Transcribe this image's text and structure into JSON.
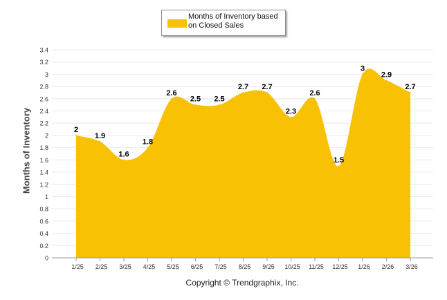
{
  "legend": {
    "label_line1": "Months of Inventory based",
    "label_line2": "on Closed Sales"
  },
  "footer": {
    "copyright": "Copyright © Trendgraphix, Inc."
  },
  "colors": {
    "fill": "#F8C103",
    "grid": "#e9e9e9",
    "axis": "#999999",
    "text": "#333333"
  },
  "chart_data": {
    "type": "area",
    "title": "",
    "xlabel": "",
    "ylabel": "Months of Inventory",
    "categories": [
      "1/25",
      "2/25",
      "3/25",
      "4/25",
      "5/25",
      "6/25",
      "7/25",
      "8/25",
      "9/25",
      "10/25",
      "11/25",
      "12/25",
      "1/26",
      "2/26",
      "3/26"
    ],
    "series": [
      {
        "name": "Months of Inventory based on Closed Sales",
        "values": [
          2,
          1.9,
          1.6,
          1.8,
          2.6,
          2.5,
          2.5,
          2.7,
          2.7,
          2.3,
          2.6,
          1.5,
          3,
          2.9,
          2.7
        ],
        "labels": [
          "2",
          "1.9",
          "1.6",
          "1.8",
          "2.6",
          "2.5",
          "2.5",
          "2.7",
          "2.7",
          "2.3",
          "2.6",
          "1.5",
          "3",
          "2.9",
          "2.7"
        ]
      }
    ],
    "ylim": [
      0,
      3.4
    ],
    "yticks": [
      "0",
      "0.2",
      "0.4",
      "0.6",
      "0.8",
      "1",
      "1.2",
      "1.4",
      "1.6",
      "1.8",
      "2",
      "2.2",
      "2.4",
      "2.6",
      "2.8",
      "3",
      "3.2",
      "3.4"
    ],
    "grid": true,
    "legend_position": "top-center"
  }
}
